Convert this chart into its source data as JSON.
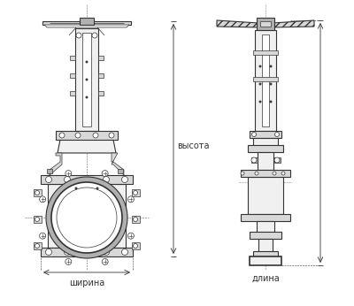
{
  "bg_color": "#ffffff",
  "lc": "#333333",
  "lc_dim": "#555555",
  "fill_white": "#ffffff",
  "fill_light": "#f0f0f0",
  "fill_mid": "#d8d8d8",
  "fill_dark": "#b0b0b0",
  "fill_darkest": "#888888",
  "label_shirna": "ширина",
  "label_dlina": "длина",
  "label_vysota": "высота",
  "fig_width": 4.0,
  "fig_height": 3.46,
  "dpi": 100
}
